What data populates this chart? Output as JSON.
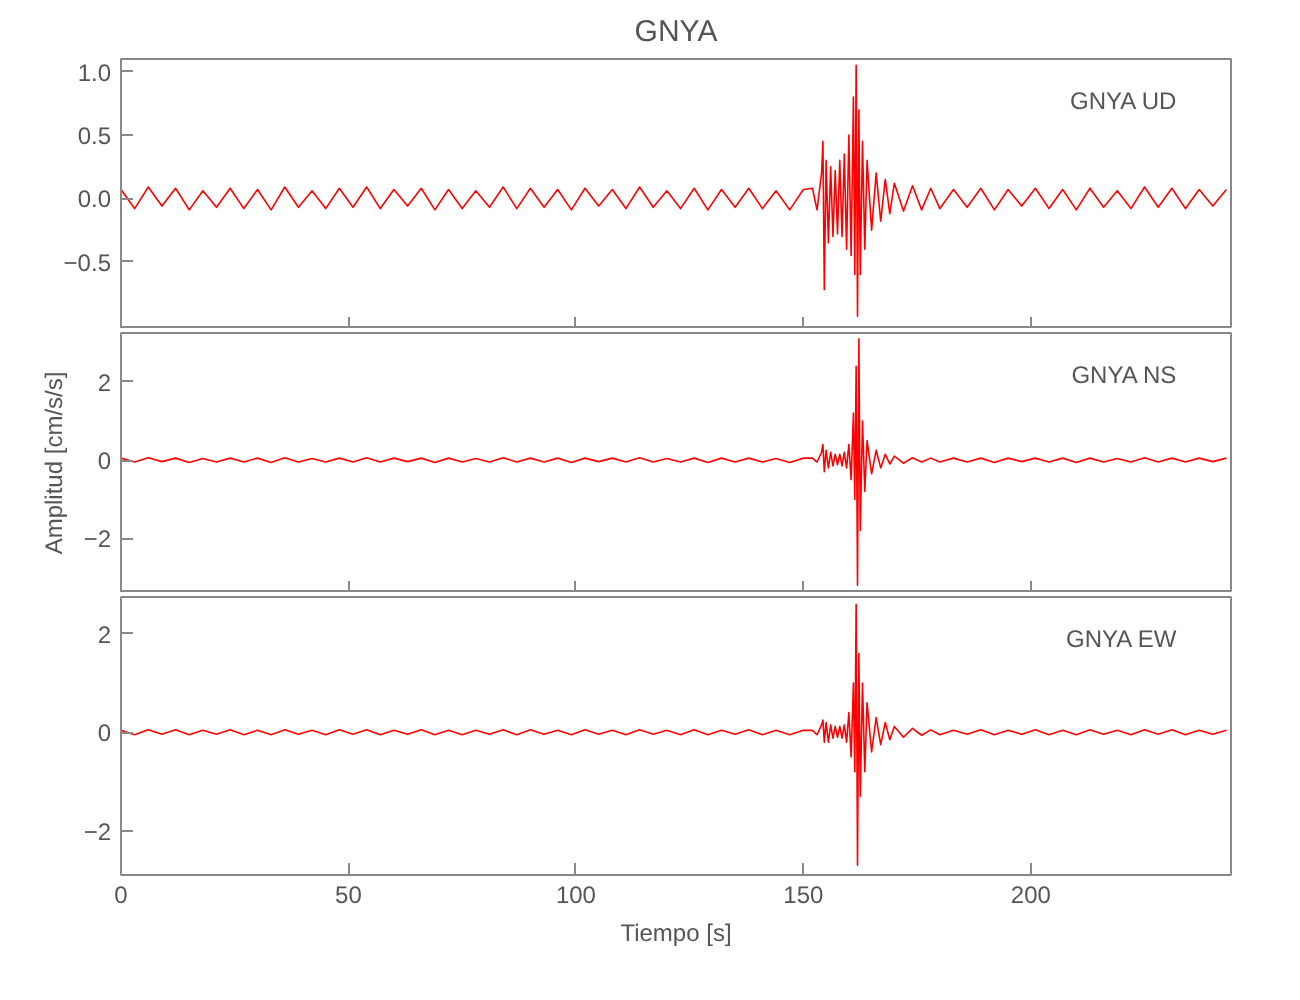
{
  "chart_data": [
    {
      "type": "line",
      "title": "GNYA",
      "annotations": [
        "GNYA   UD"
      ],
      "tick_labels": "y",
      "grid": false,
      "x": [
        0,
        3,
        6,
        9,
        12,
        15,
        18,
        21,
        24,
        27,
        30,
        33,
        36,
        39,
        42,
        45,
        48,
        51,
        54,
        57,
        60,
        63,
        66,
        69,
        72,
        75,
        78,
        81,
        84,
        87,
        90,
        93,
        96,
        99,
        102,
        105,
        108,
        111,
        114,
        117,
        120,
        123,
        126,
        129,
        132,
        135,
        138,
        141,
        144,
        147,
        150,
        152,
        153,
        154,
        154.3,
        154.6,
        155,
        155.5,
        156,
        156.5,
        157,
        157.5,
        158,
        158.5,
        159,
        159.5,
        160,
        160.5,
        161,
        161.3,
        161.6,
        161.9,
        162.2,
        162.5,
        163,
        163.5,
        164,
        165,
        166,
        167,
        168,
        169,
        170,
        172,
        174,
        176,
        178,
        180,
        183,
        186,
        189,
        192,
        195,
        198,
        201,
        204,
        207,
        210,
        213,
        216,
        219,
        222,
        225,
        228,
        231,
        234,
        237,
        240,
        243
      ],
      "series": [
        {
          "color": "#ff0000",
          "values": [
            0.07,
            -0.08,
            0.09,
            -0.06,
            0.08,
            -0.09,
            0.06,
            -0.07,
            0.08,
            -0.08,
            0.07,
            -0.09,
            0.09,
            -0.07,
            0.06,
            -0.08,
            0.08,
            -0.07,
            0.09,
            -0.08,
            0.07,
            -0.06,
            0.08,
            -0.09,
            0.07,
            -0.08,
            0.06,
            -0.07,
            0.09,
            -0.08,
            0.08,
            -0.07,
            0.07,
            -0.09,
            0.08,
            -0.06,
            0.07,
            -0.08,
            0.09,
            -0.07,
            0.06,
            -0.08,
            0.08,
            -0.09,
            0.07,
            -0.07,
            0.08,
            -0.08,
            0.06,
            -0.09,
            0.07,
            0.08,
            -0.09,
            0.2,
            0.45,
            -0.72,
            0.3,
            -0.35,
            0.25,
            -0.3,
            0.22,
            -0.28,
            0.3,
            -0.3,
            0.35,
            -0.4,
            0.5,
            -0.45,
            0.8,
            -0.6,
            1.05,
            -0.93,
            0.7,
            -0.6,
            0.45,
            -0.4,
            0.3,
            -0.25,
            0.2,
            -0.18,
            0.15,
            -0.12,
            0.12,
            -0.1,
            0.1,
            -0.09,
            0.08,
            -0.08,
            0.07,
            -0.07,
            0.08,
            -0.09,
            0.07,
            -0.06,
            0.08,
            -0.08,
            0.07,
            -0.09,
            0.08,
            -0.07,
            0.06,
            -0.08,
            0.09,
            -0.07,
            0.08,
            -0.08,
            0.07,
            -0.06,
            0.07
          ]
        }
      ],
      "xlim": [
        0,
        244
      ],
      "xticks": [
        0,
        50,
        100,
        150,
        200
      ],
      "ylim": [
        -1.03,
        1.1
      ],
      "yticks": [
        {
          "value": -0.5,
          "label": "−0.5"
        },
        {
          "value": 0,
          "label": "0.0"
        },
        {
          "value": 0.5,
          "label": "0.5"
        },
        {
          "value": 1,
          "label": "1.0"
        }
      ]
    },
    {
      "type": "line",
      "ylabel": "Amplitud [cm/s/s]",
      "annotations": [
        "GNYA   NS"
      ],
      "tick_labels": "y",
      "grid": false,
      "x": [
        0,
        3,
        6,
        9,
        12,
        15,
        18,
        21,
        24,
        27,
        30,
        33,
        36,
        39,
        42,
        45,
        48,
        51,
        54,
        57,
        60,
        63,
        66,
        69,
        72,
        75,
        78,
        81,
        84,
        87,
        90,
        93,
        96,
        99,
        102,
        105,
        108,
        111,
        114,
        117,
        120,
        123,
        126,
        129,
        132,
        135,
        138,
        141,
        144,
        147,
        150,
        152,
        153,
        154,
        154.3,
        154.6,
        155,
        155.5,
        156,
        156.5,
        157,
        157.5,
        158,
        158.5,
        159,
        159.5,
        160,
        160.5,
        161,
        161.3,
        161.6,
        161.9,
        162.2,
        162.5,
        163,
        163.5,
        164,
        165,
        166,
        167,
        168,
        169,
        170,
        172,
        174,
        176,
        178,
        180,
        183,
        186,
        189,
        192,
        195,
        198,
        201,
        204,
        207,
        210,
        213,
        216,
        219,
        222,
        225,
        228,
        231,
        234,
        237,
        240,
        243
      ],
      "series": [
        {
          "color": "#ff0000",
          "values": [
            0.05,
            -0.05,
            0.06,
            -0.04,
            0.05,
            -0.06,
            0.04,
            -0.05,
            0.05,
            -0.05,
            0.05,
            -0.06,
            0.06,
            -0.05,
            0.04,
            -0.05,
            0.05,
            -0.05,
            0.06,
            -0.05,
            0.05,
            -0.04,
            0.05,
            -0.06,
            0.05,
            -0.05,
            0.04,
            -0.05,
            0.06,
            -0.05,
            0.05,
            -0.05,
            0.05,
            -0.06,
            0.05,
            -0.04,
            0.05,
            -0.05,
            0.06,
            -0.05,
            0.04,
            -0.05,
            0.05,
            -0.06,
            0.05,
            -0.05,
            0.05,
            -0.05,
            0.04,
            -0.06,
            0.05,
            0.05,
            -0.05,
            0.2,
            0.4,
            -0.3,
            0.25,
            -0.2,
            0.2,
            -0.15,
            0.15,
            -0.12,
            0.15,
            -0.15,
            0.2,
            -0.2,
            0.4,
            -0.5,
            1.2,
            -1.0,
            2.4,
            -3.2,
            3.1,
            -1.8,
            1.0,
            -0.8,
            0.5,
            -0.35,
            0.25,
            -0.2,
            0.15,
            -0.1,
            0.1,
            -0.08,
            0.06,
            -0.05,
            0.05,
            -0.05,
            0.05,
            -0.05,
            0.05,
            -0.06,
            0.05,
            -0.04,
            0.05,
            -0.05,
            0.05,
            -0.06,
            0.05,
            -0.05,
            0.04,
            -0.05,
            0.06,
            -0.05,
            0.05,
            -0.05,
            0.05,
            -0.04,
            0.05
          ]
        }
      ],
      "xlim": [
        0,
        244
      ],
      "xticks": [
        0,
        50,
        100,
        150,
        200
      ],
      "ylim": [
        -3.4,
        3.25
      ],
      "yticks": [
        {
          "value": -2,
          "label": "−2"
        },
        0,
        2
      ]
    },
    {
      "type": "line",
      "xlabel": "Tiempo [s]",
      "annotations": [
        "GNYA   EW"
      ],
      "grid": false,
      "x": [
        0,
        3,
        6,
        9,
        12,
        15,
        18,
        21,
        24,
        27,
        30,
        33,
        36,
        39,
        42,
        45,
        48,
        51,
        54,
        57,
        60,
        63,
        66,
        69,
        72,
        75,
        78,
        81,
        84,
        87,
        90,
        93,
        96,
        99,
        102,
        105,
        108,
        111,
        114,
        117,
        120,
        123,
        126,
        129,
        132,
        135,
        138,
        141,
        144,
        147,
        150,
        152,
        153,
        154,
        154.3,
        154.6,
        155,
        155.5,
        156,
        156.5,
        157,
        157.5,
        158,
        158.5,
        159,
        159.5,
        160,
        160.5,
        161,
        161.3,
        161.6,
        161.9,
        162.2,
        162.5,
        163,
        163.5,
        164,
        165,
        166,
        167,
        168,
        169,
        170,
        172,
        174,
        176,
        178,
        180,
        183,
        186,
        189,
        192,
        195,
        198,
        201,
        204,
        207,
        210,
        213,
        216,
        219,
        222,
        225,
        228,
        231,
        234,
        237,
        240,
        243
      ],
      "series": [
        {
          "color": "#ff0000",
          "values": [
            0.04,
            -0.05,
            0.05,
            -0.04,
            0.05,
            -0.05,
            0.04,
            -0.04,
            0.05,
            -0.05,
            0.04,
            -0.05,
            0.05,
            -0.04,
            0.04,
            -0.05,
            0.05,
            -0.04,
            0.05,
            -0.05,
            0.04,
            -0.04,
            0.05,
            -0.05,
            0.04,
            -0.05,
            0.04,
            -0.04,
            0.05,
            -0.05,
            0.05,
            -0.04,
            0.04,
            -0.05,
            0.05,
            -0.04,
            0.04,
            -0.05,
            0.05,
            -0.04,
            0.04,
            -0.05,
            0.05,
            -0.05,
            0.04,
            -0.04,
            0.05,
            -0.05,
            0.04,
            -0.05,
            0.04,
            0.04,
            -0.05,
            0.15,
            0.25,
            -0.2,
            0.2,
            -0.2,
            0.15,
            -0.12,
            0.12,
            -0.1,
            0.12,
            -0.12,
            0.15,
            -0.2,
            0.4,
            -0.5,
            1.0,
            -0.8,
            2.6,
            -2.7,
            1.6,
            -1.3,
            1.0,
            -0.8,
            0.6,
            -0.4,
            0.3,
            -0.25,
            0.2,
            -0.15,
            0.12,
            -0.1,
            0.08,
            -0.06,
            0.05,
            -0.05,
            0.04,
            -0.04,
            0.05,
            -0.05,
            0.04,
            -0.04,
            0.05,
            -0.05,
            0.04,
            -0.05,
            0.05,
            -0.04,
            0.04,
            -0.05,
            0.05,
            -0.04,
            0.05,
            -0.05,
            0.04,
            -0.04,
            0.04
          ]
        }
      ],
      "xlim": [
        0,
        244
      ],
      "xticks": [
        0,
        50,
        100,
        150,
        200
      ],
      "ylim": [
        -2.9,
        2.75
      ],
      "yticks": [
        {
          "value": -2,
          "label": "−2"
        },
        0,
        2
      ]
    }
  ]
}
